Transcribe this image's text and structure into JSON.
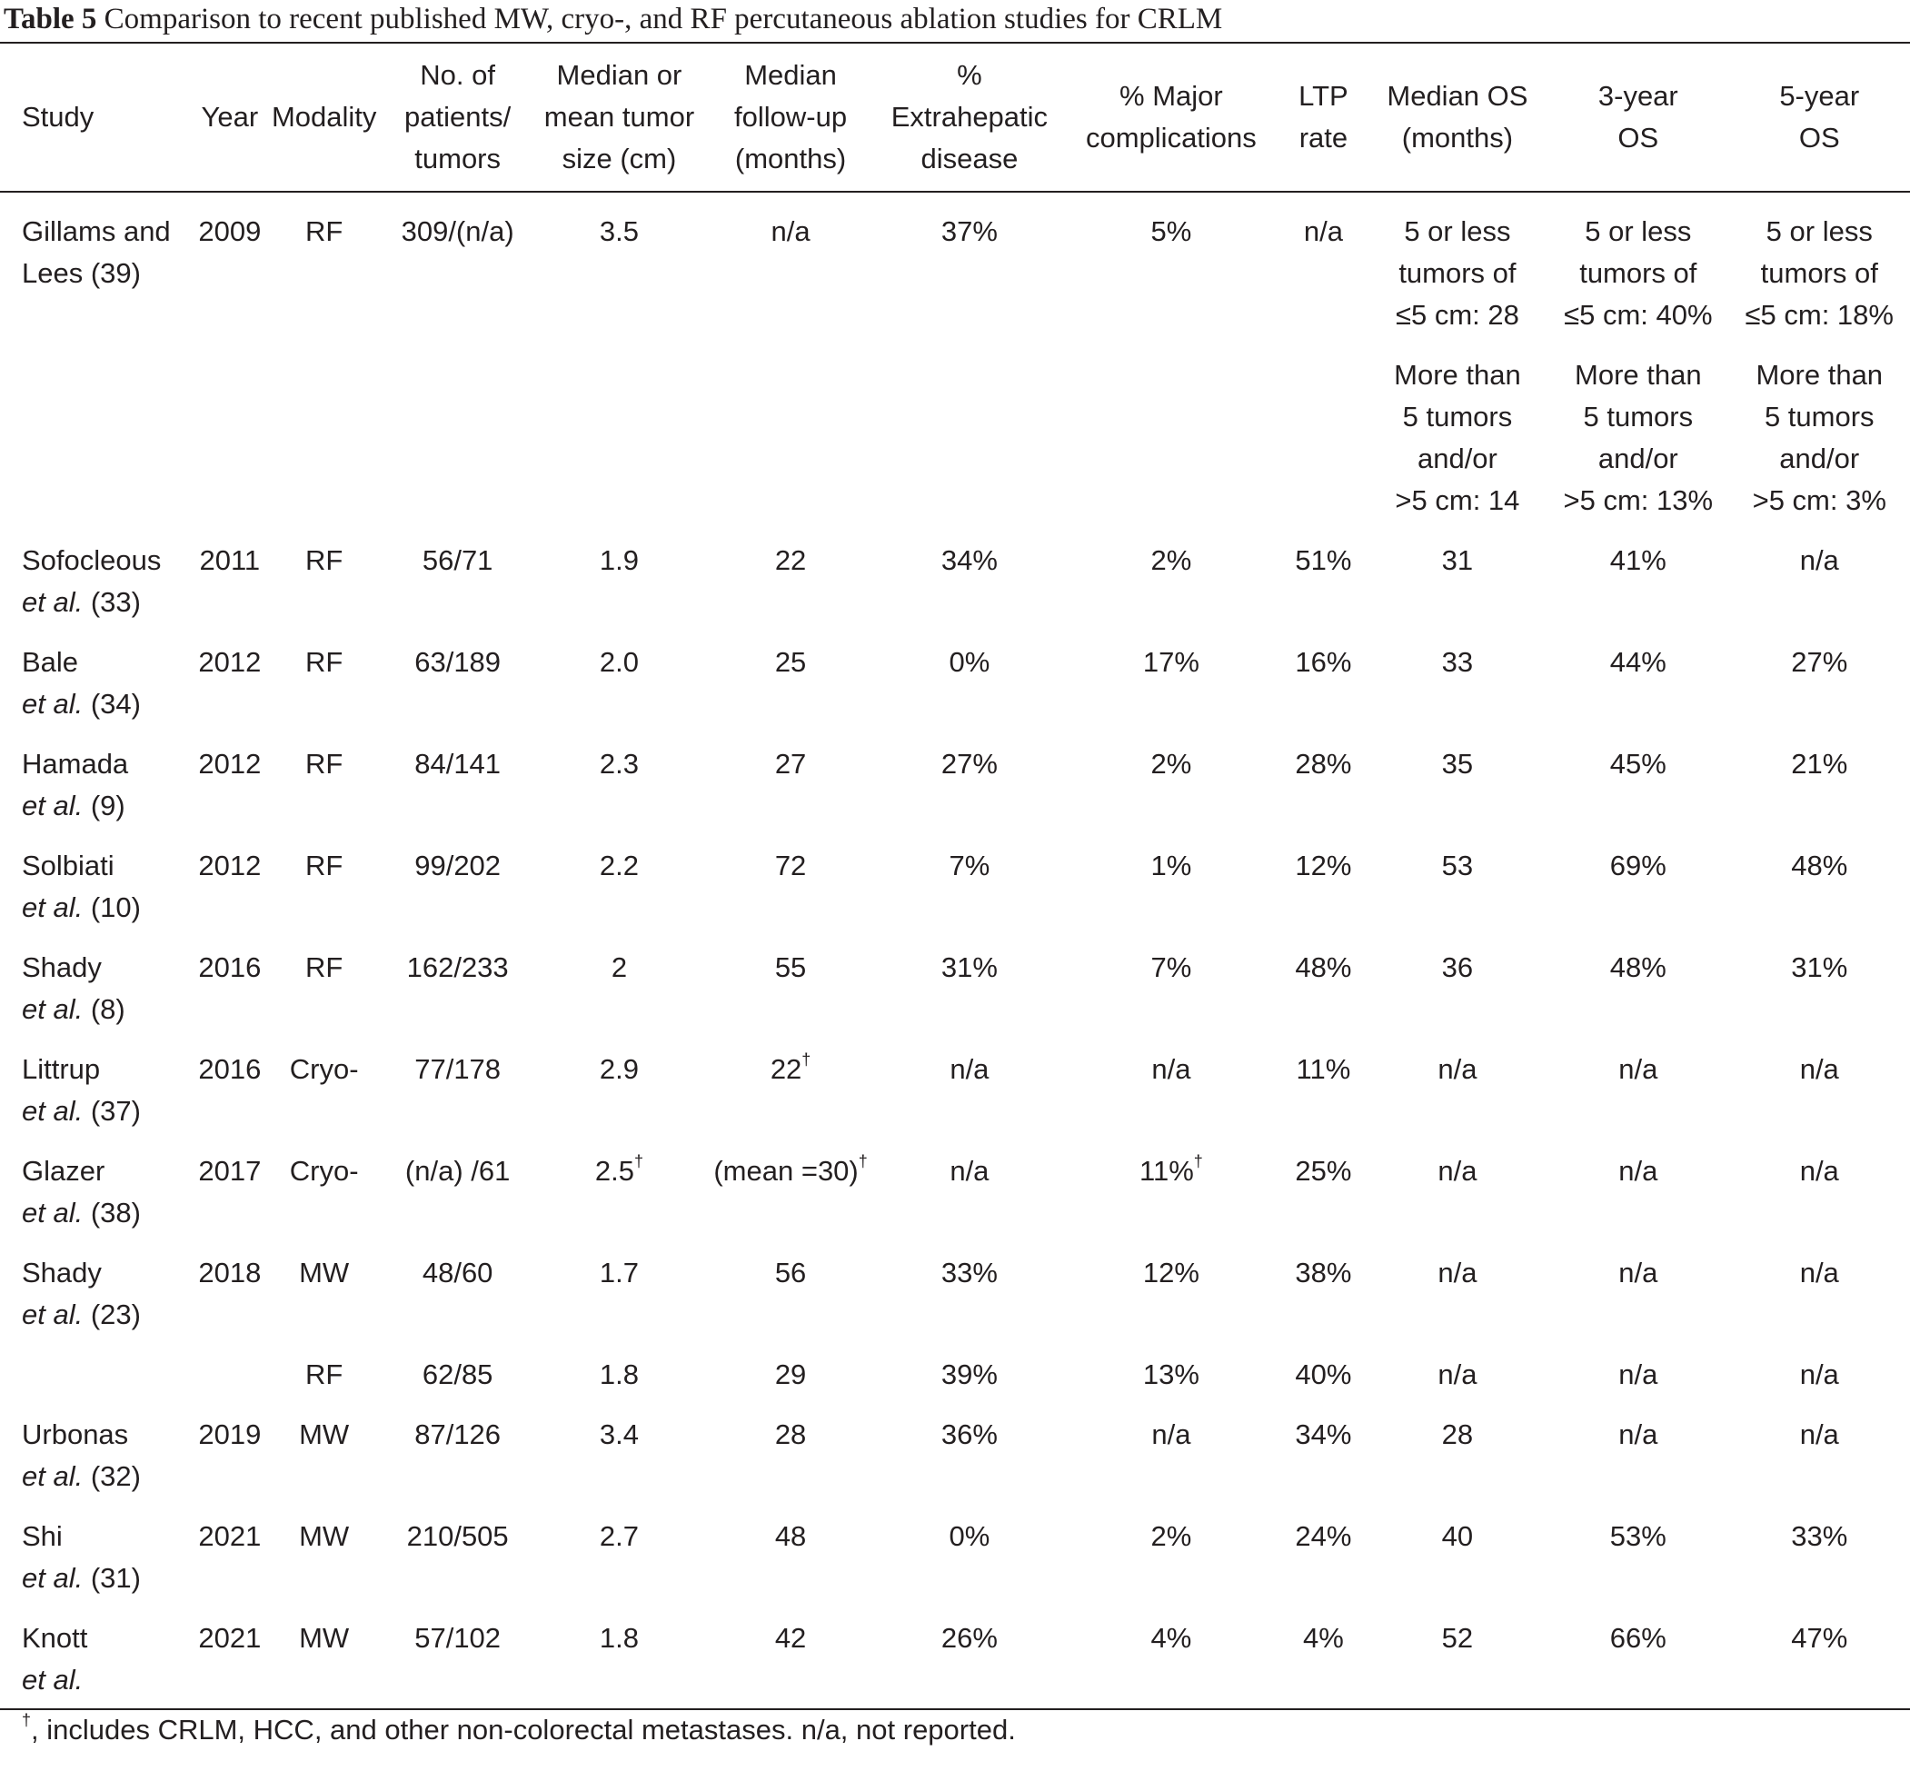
{
  "caption": {
    "label": "Table 5",
    "text": "Comparison to recent published MW, cryo-, and RF percutaneous ablation studies for CRLM"
  },
  "headers": [
    [
      "Study"
    ],
    [
      "Year"
    ],
    [
      "Modality"
    ],
    [
      "No. of",
      "patients/",
      "tumors"
    ],
    [
      "Median or",
      "mean tumor",
      "size (cm)"
    ],
    [
      "Median",
      "follow-up",
      "(months)"
    ],
    [
      "%",
      "Extrahepatic",
      "disease"
    ],
    [
      "% Major",
      "complications"
    ],
    [
      "LTP",
      "rate"
    ],
    [
      "Median OS",
      "(months)"
    ],
    [
      "3-year",
      "OS"
    ],
    [
      "5-year",
      "OS"
    ]
  ],
  "rows": [
    {
      "study": "Gillams and",
      "study_suffix": "Lees",
      "ref": "(39)",
      "year": "2009",
      "modality": "RF",
      "patients": "309/(n/a)",
      "size": "3.5",
      "size_dagger": "",
      "followup": "n/a",
      "followup_dagger": "",
      "extrahepatic": "37%",
      "complications": "5%",
      "complications_dagger": "",
      "ltp": "n/a",
      "os_median": [
        "5 or less",
        "tumors of",
        "≤5 cm: 28"
      ],
      "os3": [
        "5 or less",
        "tumors of",
        "≤5 cm: 40%"
      ],
      "os5": [
        "5 or less",
        "tumors of",
        "≤5 cm: 18%"
      ]
    },
    {
      "subrow": true,
      "os_median": [
        "More than",
        "5 tumors",
        "and/or",
        ">5 cm: 14"
      ],
      "os3": [
        "More than",
        "5 tumors",
        "and/or",
        ">5 cm: 13%"
      ],
      "os5": [
        "More than",
        "5 tumors",
        "and/or",
        ">5 cm: 3%"
      ]
    },
    {
      "study": "Sofocleous",
      "ref": "(33)",
      "year": "2011",
      "modality": "RF",
      "patients": "56/71",
      "size": "1.9",
      "followup": "22",
      "extrahepatic": "34%",
      "complications": "2%",
      "ltp": "51%",
      "os_median": "31",
      "os3": "41%",
      "os5": "n/a"
    },
    {
      "study": "Bale",
      "ref": "(34)",
      "year": "2012",
      "modality": "RF",
      "patients": "63/189",
      "size": "2.0",
      "followup": "25",
      "extrahepatic": "0%",
      "complications": "17%",
      "ltp": "16%",
      "os_median": "33",
      "os3": "44%",
      "os5": "27%"
    },
    {
      "study": "Hamada",
      "ref": "(9)",
      "year": "2012",
      "modality": "RF",
      "patients": "84/141",
      "size": "2.3",
      "followup": "27",
      "extrahepatic": "27%",
      "complications": "2%",
      "ltp": "28%",
      "os_median": "35",
      "os3": "45%",
      "os5": "21%"
    },
    {
      "study": "Solbiati",
      "ref": "(10)",
      "year": "2012",
      "modality": "RF",
      "patients": "99/202",
      "size": "2.2",
      "followup": "72",
      "extrahepatic": "7%",
      "complications": "1%",
      "ltp": "12%",
      "os_median": "53",
      "os3": "69%",
      "os5": "48%"
    },
    {
      "study": "Shady",
      "ref": "(8)",
      "year": "2016",
      "modality": "RF",
      "patients": "162/233",
      "size": "2",
      "followup": "55",
      "extrahepatic": "31%",
      "complications": "7%",
      "ltp": "48%",
      "os_median": "36",
      "os3": "48%",
      "os5": "31%"
    },
    {
      "study": "Littrup",
      "ref": "(37)",
      "year": "2016",
      "modality": "Cryo-",
      "patients": "77/178",
      "size": "2.9",
      "followup": "22",
      "followup_dagger": "†",
      "extrahepatic": "n/a",
      "complications": "n/a",
      "ltp": "11%",
      "os_median": "n/a",
      "os3": "n/a",
      "os5": "n/a"
    },
    {
      "study": "Glazer",
      "ref": "(38)",
      "year": "2017",
      "modality": "Cryo-",
      "patients": "(n/a) /61",
      "size": "2.5",
      "size_dagger": "†",
      "followup": "(mean =30)",
      "followup_dagger": "†",
      "extrahepatic": "n/a",
      "complications": "11%",
      "complications_dagger": "†",
      "ltp": "25%",
      "os_median": "n/a",
      "os3": "n/a",
      "os5": "n/a"
    },
    {
      "study": "Shady",
      "ref": "(23)",
      "year": "2018",
      "modality": "MW",
      "patients": "48/60",
      "size": "1.7",
      "followup": "56",
      "extrahepatic": "33%",
      "complications": "12%",
      "ltp": "38%",
      "os_median": "n/a",
      "os3": "n/a",
      "os5": "n/a"
    },
    {
      "study": "",
      "ref": "",
      "year": "",
      "modality": "RF",
      "patients": "62/85",
      "size": "1.8",
      "followup": "29",
      "extrahepatic": "39%",
      "complications": "13%",
      "ltp": "40%",
      "os_median": "n/a",
      "os3": "n/a",
      "os5": "n/a",
      "continuation": true
    },
    {
      "study": "Urbonas",
      "ref": "(32)",
      "year": "2019",
      "modality": "MW",
      "patients": "87/126",
      "size": "3.4",
      "followup": "28",
      "extrahepatic": "36%",
      "complications": "n/a",
      "ltp": "34%",
      "os_median": "28",
      "os3": "n/a",
      "os5": "n/a"
    },
    {
      "study": "Shi",
      "ref": "(31)",
      "year": "2021",
      "modality": "MW",
      "patients": "210/505",
      "size": "2.7",
      "followup": "48",
      "extrahepatic": "0%",
      "complications": "2%",
      "ltp": "24%",
      "os_median": "40",
      "os3": "53%",
      "os5": "33%"
    },
    {
      "study": "Knott",
      "ref": "",
      "year": "2021",
      "modality": "MW",
      "patients": "57/102",
      "size": "1.8",
      "followup": "42",
      "extrahepatic": "26%",
      "complications": "4%",
      "ltp": "4%",
      "os_median": "52",
      "os3": "66%",
      "os5": "47%"
    }
  ],
  "etal": "et al.",
  "footnote": {
    "dagger": "†",
    "text": ", includes CRLM, HCC, and other non-colorectal metastases. n/a, not reported."
  }
}
